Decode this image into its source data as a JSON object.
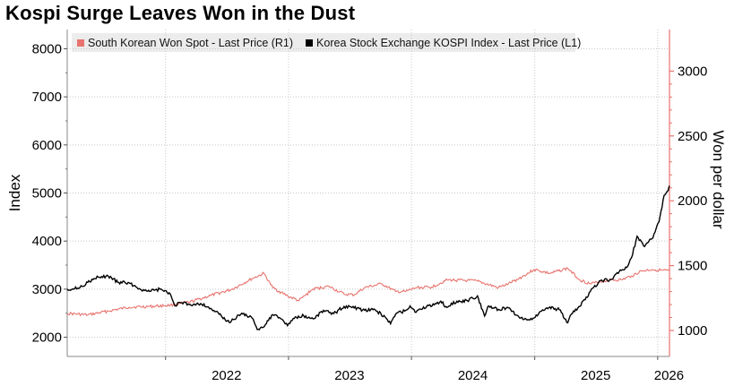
{
  "title": "Kospi Surge Leaves Won in the Dust",
  "legend": [
    {
      "label": "South Korean Won Spot - Last Price (R1)",
      "color": "#e8736e"
    },
    {
      "label": "Korea Stock Exchange KOSPI Index - Last Price (L1)",
      "color": "#000000"
    }
  ],
  "colors": {
    "won": "#e8736e",
    "kospi": "#000000",
    "right_axis": "#e8736e",
    "grid": "#c8c8c8"
  },
  "chart_data": {
    "type": "line",
    "title": "Kospi Surge Leaves Won in the Dust",
    "ylabel_left": "Index",
    "ylabel_right": "Won per dollar",
    "x_range": [
      "2021-03-15",
      "2026-02-05"
    ],
    "x_ticks": [
      {
        "label": "2022",
        "date": "2022-01-01"
      },
      {
        "label": "2023",
        "date": "2023-01-01"
      },
      {
        "label": "2024",
        "date": "2024-01-01"
      },
      {
        "label": "2025",
        "date": "2025-01-01"
      },
      {
        "label": "2026",
        "date": "2026-01-01"
      }
    ],
    "ylim_left": [
      1600,
      8400
    ],
    "yticks_left": [
      2000,
      3000,
      4000,
      5000,
      6000,
      7000,
      8000
    ],
    "ylim_right": [
      800,
      3320
    ],
    "yticks_right": [
      1000,
      1500,
      2000,
      2500,
      3000
    ],
    "grid": true,
    "legend_position": "top",
    "series": [
      {
        "name": "Korea Stock Exchange KOSPI Index - Last Price (L1)",
        "axis": "left",
        "points": [
          [
            "2021-03-15",
            3000
          ],
          [
            "2021-04-15",
            3020
          ],
          [
            "2021-05-15",
            3140
          ],
          [
            "2021-06-15",
            3250
          ],
          [
            "2021-07-15",
            3270
          ],
          [
            "2021-08-15",
            3140
          ],
          [
            "2021-09-15",
            3130
          ],
          [
            "2021-10-15",
            3010
          ],
          [
            "2021-11-15",
            2950
          ],
          [
            "2021-12-15",
            3000
          ],
          [
            "2022-01-15",
            2900
          ],
          [
            "2022-01-28",
            2660
          ],
          [
            "2022-02-15",
            2720
          ],
          [
            "2022-03-15",
            2680
          ],
          [
            "2022-04-15",
            2700
          ],
          [
            "2022-05-15",
            2600
          ],
          [
            "2022-06-15",
            2450
          ],
          [
            "2022-06-30",
            2330
          ],
          [
            "2022-07-15",
            2330
          ],
          [
            "2022-08-15",
            2500
          ],
          [
            "2022-09-15",
            2400
          ],
          [
            "2022-09-30",
            2160
          ],
          [
            "2022-10-15",
            2200
          ],
          [
            "2022-11-15",
            2470
          ],
          [
            "2022-12-15",
            2360
          ],
          [
            "2022-12-29",
            2240
          ],
          [
            "2023-01-15",
            2390
          ],
          [
            "2023-02-15",
            2450
          ],
          [
            "2023-03-15",
            2380
          ],
          [
            "2023-04-15",
            2560
          ],
          [
            "2023-05-15",
            2490
          ],
          [
            "2023-06-15",
            2640
          ],
          [
            "2023-07-15",
            2610
          ],
          [
            "2023-08-15",
            2560
          ],
          [
            "2023-09-15",
            2570
          ],
          [
            "2023-10-15",
            2420
          ],
          [
            "2023-10-31",
            2280
          ],
          [
            "2023-11-15",
            2480
          ],
          [
            "2023-12-15",
            2560
          ],
          [
            "2023-12-28",
            2650
          ],
          [
            "2024-01-15",
            2520
          ],
          [
            "2024-02-15",
            2640
          ],
          [
            "2024-03-15",
            2700
          ],
          [
            "2024-03-28",
            2750
          ],
          [
            "2024-04-15",
            2620
          ],
          [
            "2024-05-15",
            2750
          ],
          [
            "2024-06-15",
            2760
          ],
          [
            "2024-07-15",
            2860
          ],
          [
            "2024-08-05",
            2440
          ],
          [
            "2024-08-15",
            2640
          ],
          [
            "2024-09-15",
            2580
          ],
          [
            "2024-10-15",
            2610
          ],
          [
            "2024-11-15",
            2420
          ],
          [
            "2024-12-09",
            2360
          ],
          [
            "2024-12-30",
            2400
          ],
          [
            "2025-01-15",
            2520
          ],
          [
            "2025-02-15",
            2630
          ],
          [
            "2025-03-15",
            2570
          ],
          [
            "2025-04-09",
            2300
          ],
          [
            "2025-04-20",
            2480
          ],
          [
            "2025-05-15",
            2640
          ],
          [
            "2025-06-15",
            2950
          ],
          [
            "2025-07-15",
            3180
          ],
          [
            "2025-08-15",
            3200
          ],
          [
            "2025-09-15",
            3390
          ],
          [
            "2025-10-01",
            3450
          ],
          [
            "2025-10-15",
            3650
          ],
          [
            "2025-11-01",
            4100
          ],
          [
            "2025-11-20",
            3900
          ],
          [
            "2025-12-15",
            4050
          ],
          [
            "2026-01-05",
            4400
          ],
          [
            "2026-01-20",
            4950
          ],
          [
            "2026-02-01",
            5050
          ],
          [
            "2026-02-05",
            5150
          ]
        ]
      },
      {
        "name": "South Korean Won Spot - Last Price (R1)",
        "axis": "right",
        "points": [
          [
            "2021-03-15",
            1132
          ],
          [
            "2021-05-15",
            1120
          ],
          [
            "2021-07-15",
            1150
          ],
          [
            "2021-09-15",
            1180
          ],
          [
            "2021-11-15",
            1185
          ],
          [
            "2022-01-15",
            1195
          ],
          [
            "2022-03-15",
            1220
          ],
          [
            "2022-05-15",
            1270
          ],
          [
            "2022-07-15",
            1315
          ],
          [
            "2022-09-15",
            1400
          ],
          [
            "2022-10-20",
            1440
          ],
          [
            "2022-11-15",
            1330
          ],
          [
            "2022-12-30",
            1265
          ],
          [
            "2023-02-01",
            1230
          ],
          [
            "2023-03-15",
            1320
          ],
          [
            "2023-05-01",
            1340
          ],
          [
            "2023-06-15",
            1280
          ],
          [
            "2023-07-15",
            1275
          ],
          [
            "2023-08-15",
            1330
          ],
          [
            "2023-10-05",
            1360
          ],
          [
            "2023-11-15",
            1300
          ],
          [
            "2023-12-15",
            1300
          ],
          [
            "2024-01-15",
            1330
          ],
          [
            "2024-03-01",
            1335
          ],
          [
            "2024-04-16",
            1390
          ],
          [
            "2024-06-15",
            1385
          ],
          [
            "2024-07-15",
            1380
          ],
          [
            "2024-09-15",
            1330
          ],
          [
            "2024-10-15",
            1360
          ],
          [
            "2024-11-15",
            1400
          ],
          [
            "2024-12-30",
            1470
          ],
          [
            "2025-01-15",
            1460
          ],
          [
            "2025-02-15",
            1440
          ],
          [
            "2025-04-09",
            1480
          ],
          [
            "2025-05-15",
            1390
          ],
          [
            "2025-06-15",
            1360
          ],
          [
            "2025-07-15",
            1375
          ],
          [
            "2025-08-15",
            1390
          ],
          [
            "2025-09-15",
            1390
          ],
          [
            "2025-10-15",
            1420
          ],
          [
            "2025-11-15",
            1460
          ],
          [
            "2025-12-15",
            1470
          ],
          [
            "2026-01-10",
            1465
          ],
          [
            "2026-02-05",
            1460
          ]
        ]
      }
    ]
  }
}
